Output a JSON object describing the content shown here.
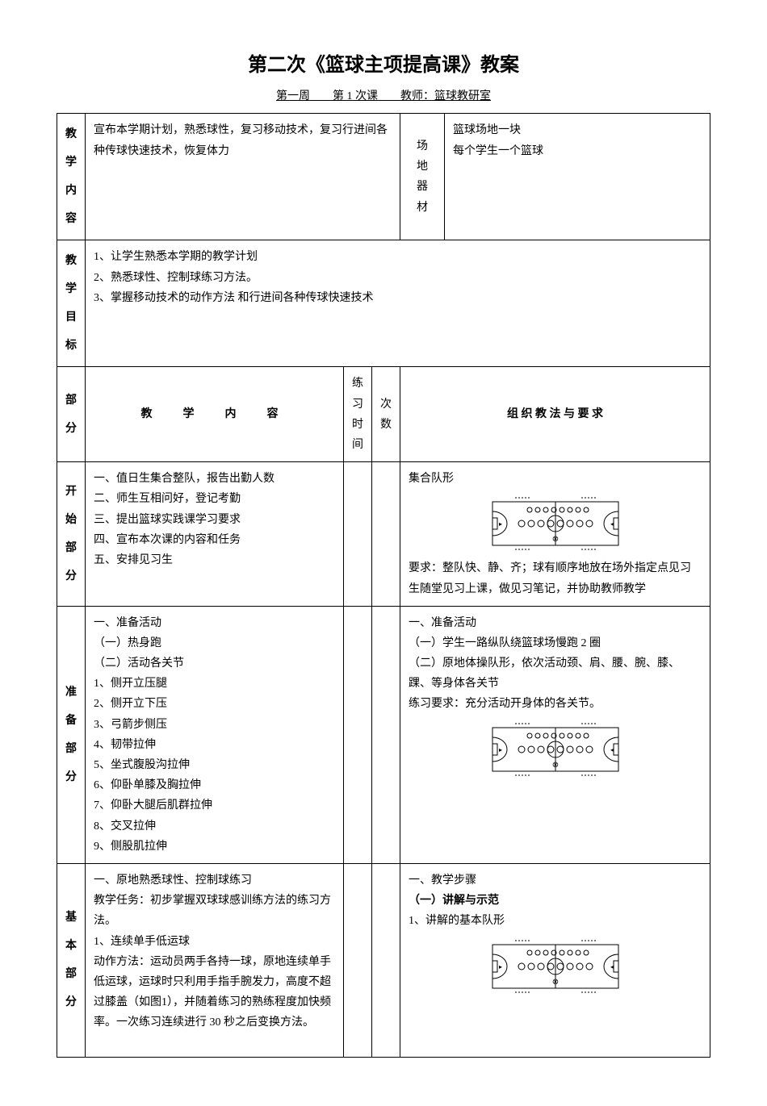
{
  "title": "第二次《篮球主项提高课》教案",
  "subtitle": "第一周　　第 1 次课　　教师：篮球教研室",
  "row1": {
    "label": "教学内容",
    "content": "宣布本学期计划，熟悉球性，复习移动技术，复习行进间各种传球快速技术，恢复体力",
    "venueLabel": "场　地",
    "venue": "篮球场地一块",
    "equipLabel": "器　材",
    "equip": "每个学生一个篮球"
  },
  "row2": {
    "label": "教学目标",
    "l1": "1、让学生熟悉本学期的教学计划",
    "l2": "2、熟悉球性、控制球练习方法。",
    "l3": "3、掌握移动技术的动作方法 和行进间各种传球快速技术"
  },
  "header": {
    "c1": "部分",
    "c2": "教　学　内　容",
    "c3": "练习时间",
    "c4": "次数",
    "c5": "组 织 教 法 与 要 求"
  },
  "start": {
    "label": "开始部分",
    "l1": "一、值日生集合整队，报告出勤人数",
    "l2": "二、师生互相问好，登记考勤",
    "l3": "三、提出篮球实践课学习要求",
    "l4": "四、宣布本次课的内容和任务",
    "l5": "五、安排见习生",
    "r1": "集合队形",
    "r2": "要求：整队快、静、齐；球有顺序地放在场外指定点见习生随堂见习上课，做见习笔记，并协助教师教学"
  },
  "prep": {
    "label": "准备部分",
    "l1": "一、准备活动",
    "l2": "（一）热身跑",
    "l3": "（二）活动各关节",
    "l4": "1、侧开立压腿",
    "l5": "2、侧开立下压",
    "l6": "3、弓箭步侧压",
    "l7": "4、韧带拉伸",
    "l8": "5、坐式腹股沟拉伸",
    "l9": "6、仰卧单膝及胸拉伸",
    "l10": "7、仰卧大腿后肌群拉伸",
    "l11": "8、交叉拉伸",
    "l12": "9、侧股肌拉伸",
    "r1": "一、准备活动",
    "r2": "（一）学生一路纵队绕篮球场慢跑 2 圈",
    "r3": "（二）原地体操队形，依次活动颈、肩、腰、腕、膝、踝、等身体各关节",
    "r4": "练习要求：充分活动开身体的各关节。"
  },
  "base": {
    "label": "基本部分",
    "l1": "一、原地熟悉球性、控制球练习",
    "l2": "教学任务：初步掌握双球球感训练方法的练习方法。",
    "l3": "1、连续单手低运球",
    "l4": "动作方法：运动员两手各持一球，原地连续单手低运球，运球时只利用手指手腕发力，高度不超过膝盖（如图1），并随着练习的熟练程度加快频率。一次练习连续进行 30 秒之后变换方法。",
    "r1": "一、教学步骤",
    "r2": "（一）讲解与示范",
    "r3": "1、讲解的基本队形"
  },
  "court": {
    "width": 160,
    "height": 70,
    "stroke": "#000000",
    "fill": "#ffffff"
  }
}
